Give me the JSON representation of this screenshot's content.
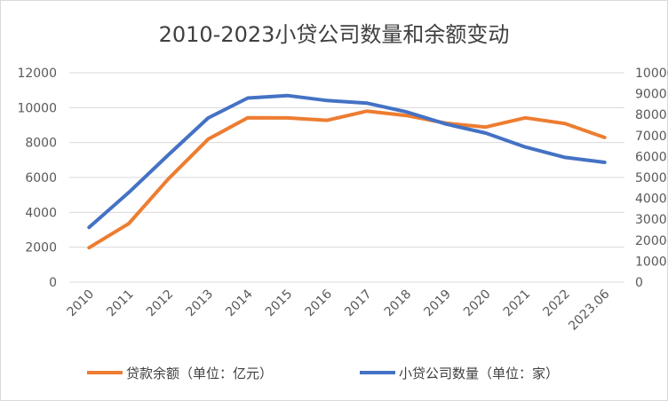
{
  "chart_data": {
    "type": "line",
    "title": "2010-2023小贷公司数量和余额变动",
    "categories": [
      "2010",
      "2011",
      "2012",
      "2013",
      "2014",
      "2015",
      "2016",
      "2017",
      "2018",
      "2019",
      "2020",
      "2021",
      "2022",
      "2023.06"
    ],
    "y_left": {
      "ylim": [
        0,
        12000
      ],
      "ticks": [
        "0",
        "2000",
        "4000",
        "6000",
        "8000",
        "10000",
        "12000"
      ]
    },
    "y_right": {
      "ylim": [
        0,
        10000
      ],
      "ticks": [
        "0",
        "1000",
        "2000",
        "3000",
        "4000",
        "5000",
        "6000",
        "7000",
        "8000",
        "9000",
        "10000"
      ]
    },
    "grid": true,
    "legend_position": "bottom",
    "series": [
      {
        "name": "贷款余额（单位：亿元）",
        "axis": "left",
        "color": "#ED7D31",
        "values": [
          1975,
          3356,
          5921,
          8191,
          9420,
          9412,
          9273,
          9799,
          9550,
          9108,
          8888,
          9415,
          9087,
          8288
        ]
      },
      {
        "name": "小贷公司数量（单位：家）",
        "axis": "right",
        "color": "#4472C4",
        "values": [
          2614,
          4282,
          6080,
          7839,
          8791,
          8910,
          8673,
          8551,
          8133,
          7551,
          7118,
          6453,
          5958,
          5720
        ]
      }
    ]
  }
}
